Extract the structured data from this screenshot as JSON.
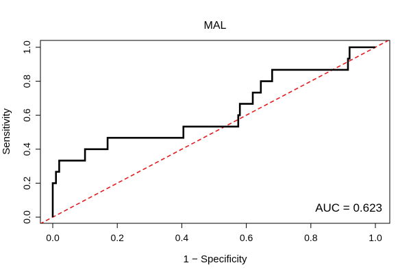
{
  "chart_data": {
    "type": "line",
    "title": "MAL",
    "xlabel": "1 − Specificity",
    "ylabel": "Sensitivity",
    "xlim": [
      0,
      1
    ],
    "ylim": [
      0,
      1
    ],
    "x_ticks": [
      0.0,
      0.2,
      0.4,
      0.6,
      0.8,
      1.0
    ],
    "x_tick_labels": [
      "0.0",
      "0.2",
      "0.4",
      "0.6",
      "0.8",
      "1.0"
    ],
    "y_ticks": [
      0.0,
      0.2,
      0.4,
      0.6,
      0.8,
      1.0
    ],
    "y_tick_labels": [
      "0.0",
      "0.2",
      "0.4",
      "0.6",
      "0.8",
      "1.0"
    ],
    "grid": false,
    "annotation": "AUC = 0.623",
    "series": [
      {
        "name": "ROC",
        "color": "#000000",
        "style": "solid",
        "x": [
          0,
          0,
          0.01,
          0.01,
          0.02,
          0.02,
          0.1,
          0.1,
          0.17,
          0.17,
          0.405,
          0.405,
          0.575,
          0.575,
          0.58,
          0.58,
          0.62,
          0.62,
          0.645,
          0.645,
          0.68,
          0.68,
          0.915,
          0.915,
          0.92,
          0.92,
          1.0
        ],
        "y": [
          0,
          0.2,
          0.2,
          0.267,
          0.267,
          0.333,
          0.333,
          0.4,
          0.4,
          0.467,
          0.467,
          0.533,
          0.533,
          0.6,
          0.6,
          0.667,
          0.667,
          0.733,
          0.733,
          0.8,
          0.8,
          0.867,
          0.867,
          0.933,
          0.933,
          1.0,
          1.0
        ]
      },
      {
        "name": "Reference",
        "color": "#e41a1c",
        "style": "dashed",
        "x": [
          -0.04,
          1.04
        ],
        "y": [
          -0.04,
          1.04
        ]
      }
    ]
  }
}
